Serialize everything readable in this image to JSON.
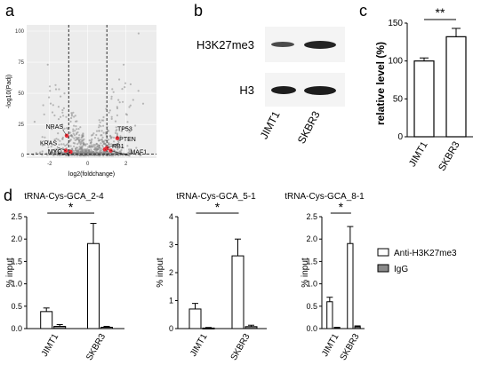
{
  "panels": {
    "a": "a",
    "b": "b",
    "c": "c",
    "d": "d"
  },
  "volcano": {
    "xlabel": "log2(foldchange)",
    "ylabel": "-log10(Padj)",
    "xticks": [
      "-2",
      "0",
      "2"
    ],
    "yticks": [
      "0",
      "25",
      "50",
      "75",
      "100"
    ],
    "genes": [
      {
        "name": "TP53",
        "x": 1.55,
        "y": 14
      },
      {
        "name": "NRAS",
        "x": -1.1,
        "y": 16
      },
      {
        "name": "KRAS",
        "x": -1.15,
        "y": 4
      },
      {
        "name": "MYC",
        "x": -0.9,
        "y": 3
      },
      {
        "name": "RB1",
        "x": 0.9,
        "y": 5
      },
      {
        "name": "PTEN",
        "x": 1.0,
        "y": 6
      },
      {
        "name": "MAF1",
        "x": 1.2,
        "y": 4
      }
    ],
    "highlight_color": "#e8303a"
  },
  "blot": {
    "rows": [
      "H3K27me3",
      "H3"
    ],
    "lanes": [
      "JIMT1",
      "SKBR3"
    ]
  },
  "chart_data": [
    {
      "type": "bar",
      "panel": "c",
      "categories": [
        "JIMT1",
        "SKBR3"
      ],
      "values": [
        100,
        132
      ],
      "errors": [
        4,
        11
      ],
      "ylabel": "relative level (%)",
      "ylim": [
        0,
        150
      ],
      "yticks": [
        "0",
        "50",
        "100",
        "150"
      ],
      "significance": "**"
    },
    {
      "type": "bar",
      "panel": "d",
      "title": "tRNA-Cys-GCA_2-4",
      "categories": [
        "JIMT1",
        "SKBR3"
      ],
      "series": [
        {
          "name": "Anti-H3K27me3",
          "values": [
            0.38,
            1.9
          ],
          "errors": [
            0.08,
            0.45
          ]
        },
        {
          "name": "IgG",
          "values": [
            0.05,
            0.03
          ],
          "errors": [
            0.04,
            0.02
          ]
        }
      ],
      "ylabel": "% input",
      "ylim": [
        0,
        2.5
      ],
      "yticks": [
        "0.0",
        "0.5",
        "1.0",
        "1.5",
        "2.0",
        "2.5"
      ],
      "significance": "*"
    },
    {
      "type": "bar",
      "panel": "d",
      "title": "tRNA-Cys-GCA_5-1",
      "categories": [
        "JIMT1",
        "SKBR3"
      ],
      "series": [
        {
          "name": "Anti-H3K27me3",
          "values": [
            0.7,
            2.6
          ],
          "errors": [
            0.2,
            0.6
          ]
        },
        {
          "name": "IgG",
          "values": [
            0.02,
            0.07
          ],
          "errors": [
            0.02,
            0.05
          ]
        }
      ],
      "ylabel": "% input",
      "ylim": [
        0,
        4
      ],
      "yticks": [
        "0",
        "1",
        "2",
        "3",
        "4"
      ],
      "significance": "*"
    },
    {
      "type": "bar",
      "panel": "d",
      "title": "tRNA-Cys-GCA_8-1",
      "categories": [
        "JIMT1",
        "SKBR3"
      ],
      "series": [
        {
          "name": "Anti-H3K27me3",
          "values": [
            0.6,
            1.9
          ],
          "errors": [
            0.1,
            0.38
          ]
        },
        {
          "name": "IgG",
          "values": [
            0.02,
            0.04
          ],
          "errors": [
            0.01,
            0.02
          ]
        }
      ],
      "ylabel": "% input",
      "ylim": [
        0,
        2.5
      ],
      "yticks": [
        "0.0",
        "0.5",
        "1.0",
        "1.5",
        "2.0",
        "2.5"
      ],
      "significance": "*"
    }
  ],
  "legend": {
    "items": [
      "Anti-H3K27me3",
      "IgG"
    ]
  }
}
